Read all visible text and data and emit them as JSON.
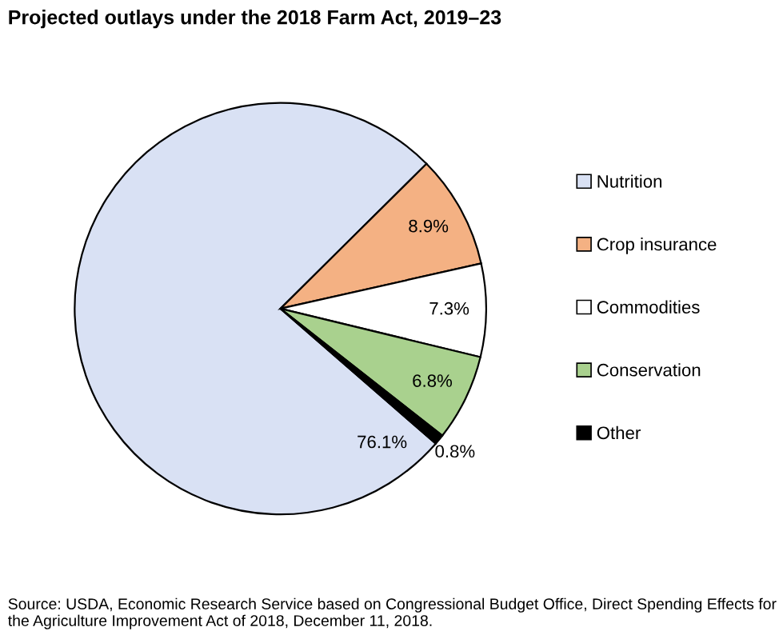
{
  "chart_data": {
    "type": "pie",
    "title": "Projected outlays under the 2018 Farm Act, 2019–23",
    "categories": [
      "Nutrition",
      "Crop insurance",
      "Commodities",
      "Conservation",
      "Other"
    ],
    "values": [
      76.1,
      8.9,
      7.3,
      6.8,
      0.8
    ],
    "value_labels": [
      "76.1%",
      "8.9%",
      "7.3%",
      "6.8%",
      "0.8%"
    ],
    "colors": [
      "#d9e1f4",
      "#f4b183",
      "#ffffff",
      "#a9d18e",
      "#000000"
    ],
    "legend": "right",
    "annotations": [
      "Source: USDA, Economic Research Service based on Congressional Budget Office, Direct Spending Effects for the Agriculture Improvement Act of 2018, December 11, 2018."
    ]
  }
}
